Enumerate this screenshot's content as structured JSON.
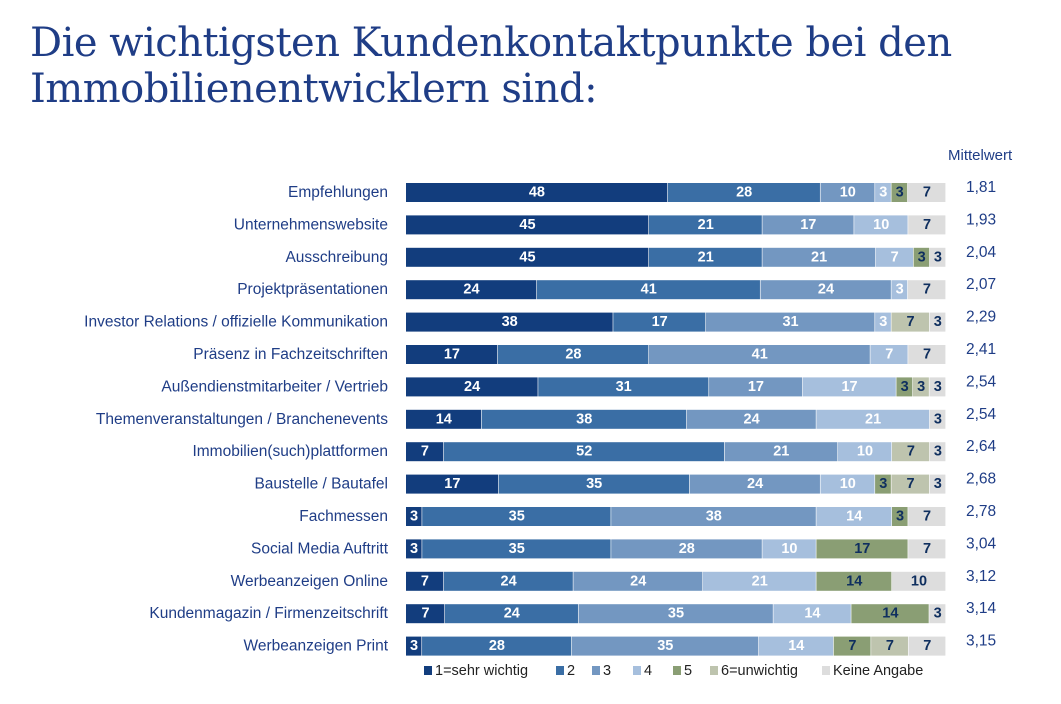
{
  "title": "Die wichtigsten Kundenkontaktpunkte bei den Immobilienentwicklern sind:",
  "chart_data": {
    "type": "bar",
    "stacked": true,
    "orientation": "horizontal",
    "mean_header": "Mittelwert",
    "categories": [
      "Empfehlungen",
      "Unternehmenswebsite",
      "Ausschreibung",
      "Projektpräsentationen",
      "Investor Relations / offizielle Kommunikation",
      "Präsenz in Fachzeitschriften",
      "Außendienstmitarbeiter / Vertrieb",
      "Themenveranstaltungen / Branchenevents",
      "Immobilien(such)plattformen",
      "Baustelle / Bautafel",
      "Fachmessen",
      "Social Media Auftritt",
      "Werbeanzeigen Online",
      "Kundenmagazin / Firmenzeitschrift",
      "Werbeanzeigen Print"
    ],
    "means": [
      "1,81",
      "1,93",
      "2,04",
      "2,07",
      "2,29",
      "2,41",
      "2,54",
      "2,54",
      "2,64",
      "2,68",
      "2,78",
      "3,04",
      "3,12",
      "3,14",
      "3,15"
    ],
    "series": [
      {
        "name": "1=sehr wichtig",
        "color": "#123d7d",
        "label_color": "#ffffff",
        "values": [
          48,
          45,
          45,
          24,
          38,
          17,
          24,
          14,
          7,
          17,
          3,
          3,
          7,
          7,
          3
        ]
      },
      {
        "name": "2",
        "color": "#3a6ea5",
        "label_color": "#ffffff",
        "values": [
          28,
          21,
          21,
          41,
          17,
          28,
          31,
          38,
          52,
          35,
          35,
          35,
          24,
          24,
          28
        ]
      },
      {
        "name": "3",
        "color": "#7397c1",
        "label_color": "#ffffff",
        "values": [
          10,
          17,
          21,
          24,
          31,
          41,
          17,
          24,
          21,
          24,
          38,
          28,
          24,
          35,
          35
        ]
      },
      {
        "name": "4",
        "color": "#a6bfdd",
        "label_color": "#ffffff",
        "values": [
          3,
          10,
          7,
          3,
          3,
          7,
          17,
          21,
          10,
          10,
          14,
          10,
          21,
          14,
          14
        ]
      },
      {
        "name": "5",
        "color": "#8a9e74",
        "label_color": "#0f2f5f",
        "values": [
          3,
          0,
          3,
          0,
          0,
          0,
          3,
          0,
          0,
          3,
          3,
          17,
          14,
          14,
          7
        ]
      },
      {
        "name": "6=unwichtig",
        "color": "#bec4ae",
        "label_color": "#0f2f5f",
        "values": [
          0,
          0,
          0,
          0,
          7,
          0,
          3,
          0,
          7,
          7,
          0,
          0,
          0,
          0,
          7
        ]
      },
      {
        "name": "Keine Angabe",
        "color": "#dddddd",
        "label_color": "#0f2f5f",
        "values": [
          7,
          7,
          3,
          7,
          3,
          7,
          3,
          3,
          3,
          3,
          7,
          7,
          10,
          3,
          7
        ]
      }
    ]
  }
}
